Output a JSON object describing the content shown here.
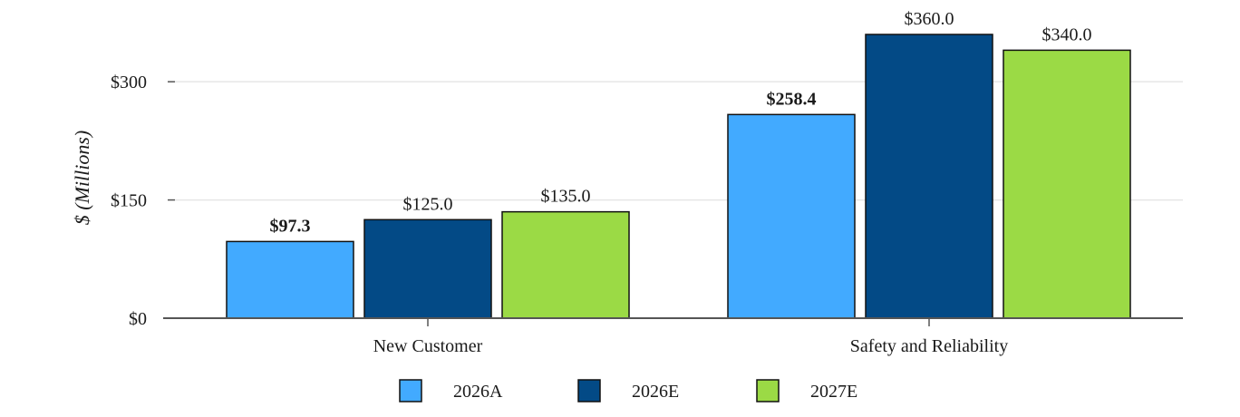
{
  "chart_data": {
    "type": "bar",
    "title": "",
    "xlabel": "",
    "ylabel": "$ (Millions)",
    "ylim": [
      0,
      360
    ],
    "yticks": [
      0,
      150,
      300
    ],
    "ytick_labels": [
      "$0",
      "$150",
      "$300"
    ],
    "grid": "horizontal",
    "legend_position": "bottom",
    "categories": [
      "New Customer",
      "Safety and Reliability"
    ],
    "series": [
      {
        "name": "2026A",
        "values": [
          97.3,
          258.4
        ],
        "labels": [
          "$97.3",
          "$258.4"
        ],
        "bold_labels": true,
        "color": "#42aaff"
      },
      {
        "name": "2026E",
        "values": [
          125.0,
          360.0
        ],
        "labels": [
          "$125.0",
          "$360.0"
        ],
        "bold_labels": false,
        "color": "#034a86"
      },
      {
        "name": "2027E",
        "values": [
          135.0,
          340.0
        ],
        "labels": [
          "$135.0",
          "$340.0"
        ],
        "bold_labels": false,
        "color": "#9bda45"
      }
    ],
    "colors": {
      "grid": "#e6e6e6",
      "axis": "#555555",
      "bar_edge": "#111111"
    }
  }
}
